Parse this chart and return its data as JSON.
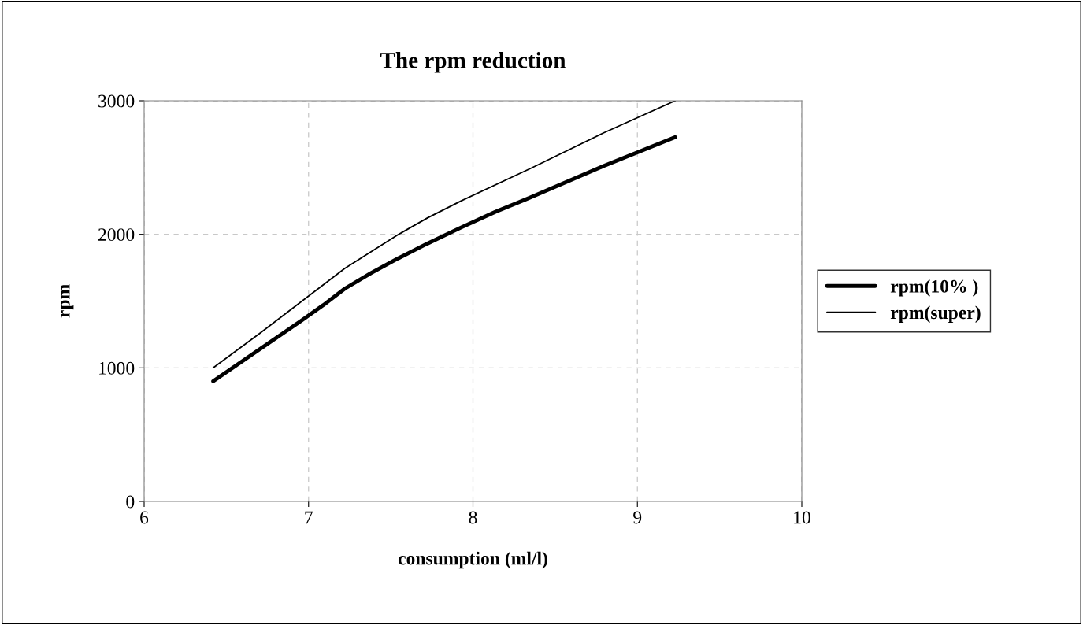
{
  "chart_data": {
    "type": "line",
    "title": "The rpm reduction",
    "xlabel": "consumption (ml/l)",
    "ylabel": "rpm",
    "xlim": [
      6,
      10
    ],
    "xticks": [
      6,
      7,
      8,
      9,
      10
    ],
    "ylim": [
      0,
      3000
    ],
    "yticks": [
      0,
      1000,
      2000,
      3000
    ],
    "grid": true,
    "legend": "right",
    "marker": "none",
    "line_style": "solid",
    "series": [
      {
        "name": "rpm(10% )",
        "color": "#000000",
        "x": [
          6.42,
          6.95,
          7.09,
          7.22,
          7.38,
          7.545,
          7.725,
          7.924,
          8.14,
          8.35,
          8.79,
          9.23
        ],
        "values": [
          900,
          1348,
          1470,
          1593,
          1710,
          1820,
          1932,
          2049,
          2170,
          2276,
          2509,
          2727
        ]
      },
      {
        "name": "rpm(super)",
        "color": "#000000",
        "x": [
          6.42,
          6.7,
          7.22,
          7.545,
          7.725,
          7.924,
          8.35,
          8.79,
          9.23
        ],
        "values": [
          1000,
          1255,
          1745,
          1998,
          2124,
          2248,
          2493,
          2757,
          3000
        ]
      }
    ]
  }
}
